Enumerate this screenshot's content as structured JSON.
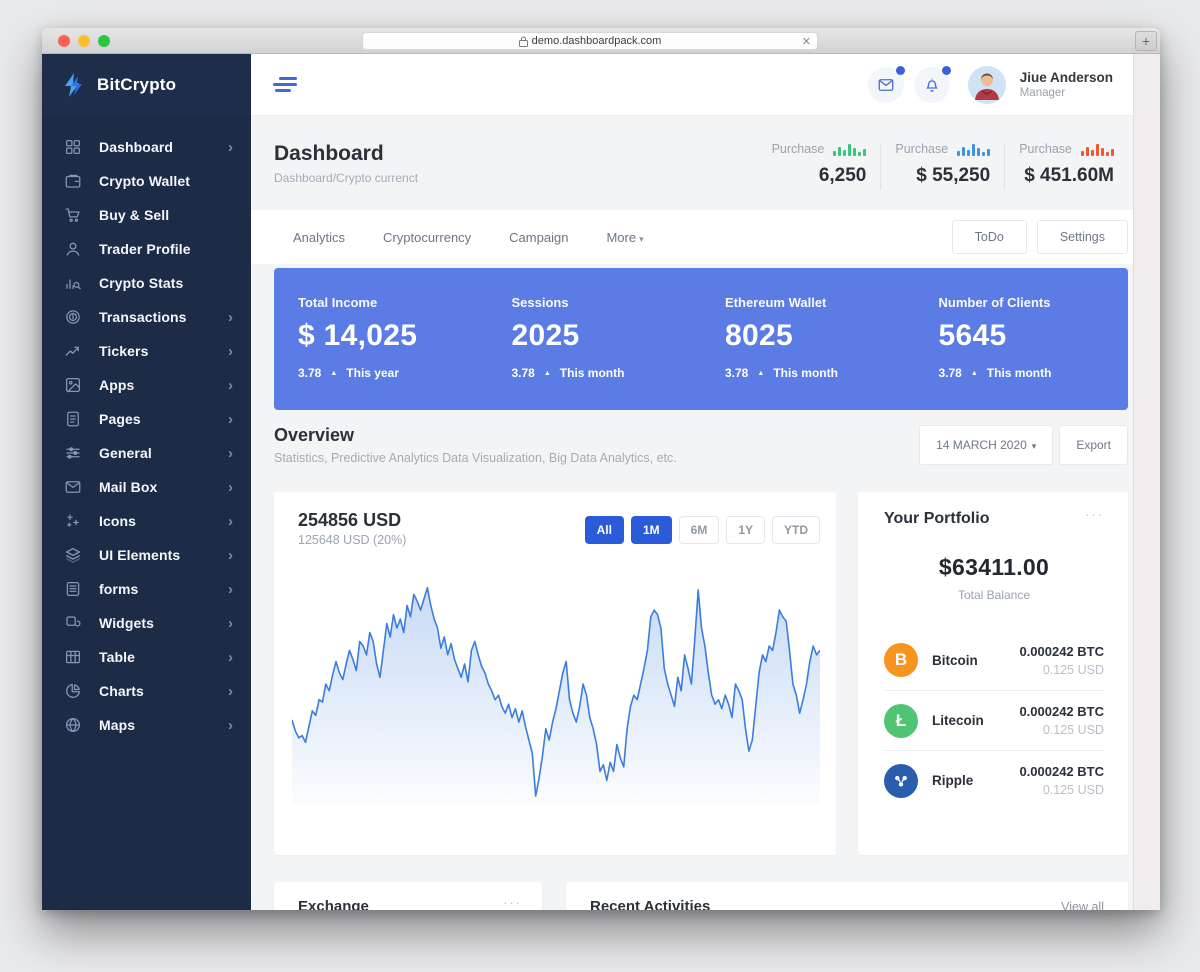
{
  "ui": {
    "ellipsis": "···",
    "chevron": "›",
    "caret": "▾",
    "triangle_up": "▲"
  },
  "browser": {
    "url": "demo.dashboardpack.com",
    "lock_icon": "lock-icon",
    "close_label": "✕",
    "new_tab_label": "+"
  },
  "sidebar": {
    "brand": "BitCrypto",
    "logo_icon": "lightning-icon",
    "items": [
      {
        "label": "Dashboard",
        "icon": "grid-icon",
        "has_submenu": true
      },
      {
        "label": "Crypto Wallet",
        "icon": "wallet-icon",
        "has_submenu": false
      },
      {
        "label": "Buy & Sell",
        "icon": "cart-icon",
        "has_submenu": false
      },
      {
        "label": "Trader Profile",
        "icon": "user-icon",
        "has_submenu": false
      },
      {
        "label": "Crypto Stats",
        "icon": "stats-search-icon",
        "has_submenu": false
      },
      {
        "label": "Transactions",
        "icon": "coin-icon",
        "has_submenu": true
      },
      {
        "label": "Tickers",
        "icon": "trend-icon",
        "has_submenu": true
      },
      {
        "label": "Apps",
        "icon": "image-icon",
        "has_submenu": true
      },
      {
        "label": "Pages",
        "icon": "page-icon",
        "has_submenu": true
      },
      {
        "label": "General",
        "icon": "sliders-icon",
        "has_submenu": true
      },
      {
        "label": "Mail Box",
        "icon": "mail-icon",
        "has_submenu": true
      },
      {
        "label": "Icons",
        "icon": "sparkles-icon",
        "has_submenu": true
      },
      {
        "label": "UI Elements",
        "icon": "layers-icon",
        "has_submenu": true
      },
      {
        "label": "forms",
        "icon": "form-icon",
        "has_submenu": true
      },
      {
        "label": "Widgets",
        "icon": "widget-icon",
        "has_submenu": true
      },
      {
        "label": "Table",
        "icon": "table-icon",
        "has_submenu": true
      },
      {
        "label": "Charts",
        "icon": "pie-icon",
        "has_submenu": true
      },
      {
        "label": "Maps",
        "icon": "globe-icon",
        "has_submenu": true
      }
    ]
  },
  "topbar": {
    "user_name": "Jiue Anderson",
    "user_role": "Manager",
    "mail_icon": "mail-icon",
    "bell_icon": "bell-icon",
    "accent": "#3f6ad8"
  },
  "page_header": {
    "title": "Dashboard",
    "breadcrumb": "Dashboard/Crypto currenct",
    "purchases": [
      {
        "label": "Purchase",
        "value": "6,250",
        "color": "#3ac47d",
        "bars": [
          5,
          9,
          6,
          12,
          8,
          4,
          7
        ]
      },
      {
        "label": "Purchase",
        "value": "$ 55,250",
        "color": "#4191e2",
        "bars": [
          5,
          9,
          6,
          12,
          8,
          4,
          7
        ]
      },
      {
        "label": "Purchase",
        "value": "$ 451.60M",
        "color": "#f4572e",
        "bars": [
          5,
          9,
          6,
          12,
          8,
          4,
          7
        ]
      }
    ]
  },
  "tabs": {
    "items": [
      "Analytics",
      "Cryptocurrency",
      "Campaign"
    ],
    "more_label": "More",
    "buttons": [
      "ToDo",
      "Settings"
    ]
  },
  "stats_band": {
    "bg": "#5b7ce4",
    "items": [
      {
        "label": "Total Income",
        "value": "$ 14,025",
        "change": "3.78",
        "period": "This year"
      },
      {
        "label": "Sessions",
        "value": "2025",
        "change": "3.78",
        "period": "This month"
      },
      {
        "label": "Ethereum Wallet",
        "value": "8025",
        "change": "3.78",
        "period": "This month"
      },
      {
        "label": "Number of Clients",
        "value": "5645",
        "change": "3.78",
        "period": "This month"
      }
    ]
  },
  "overview": {
    "title": "Overview",
    "subtitle": "Statistics, Predictive Analytics Data Visualization, Big Data Analytics, etc.",
    "date_button": "14 MARCH 2020",
    "export_button": "Export"
  },
  "chart_card": {
    "value": "254856 USD",
    "subvalue": "125648 USD (20%)",
    "ranges": [
      {
        "label": "All",
        "active": true
      },
      {
        "label": "1M",
        "active": true
      },
      {
        "label": "6M",
        "active": false
      },
      {
        "label": "1Y",
        "active": false
      },
      {
        "label": "YTD",
        "active": false
      }
    ],
    "active_color": "#2b5bd8"
  },
  "chart_data": {
    "type": "area",
    "title": "Overview price chart (254856 USD)",
    "line_color": "#3b7ddd",
    "fill_color": "#3b7ddd",
    "xlabel": "",
    "ylabel": "",
    "axes_hidden": true,
    "ylim": [
      0,
      100
    ],
    "values": [
      38,
      33,
      30,
      31,
      28,
      35,
      42,
      40,
      47,
      46,
      54,
      51,
      58,
      64,
      59,
      56,
      63,
      69,
      65,
      60,
      73,
      71,
      67,
      77,
      73,
      63,
      57,
      69,
      81,
      75,
      85,
      79,
      83,
      77,
      89,
      84,
      94,
      91,
      87,
      92,
      97,
      89,
      83,
      79,
      70,
      75,
      67,
      72,
      65,
      61,
      57,
      63,
      55,
      69,
      73,
      67,
      62,
      59,
      54,
      51,
      47,
      49,
      44,
      41,
      45,
      39,
      43,
      37,
      42,
      35,
      29,
      23,
      4,
      12,
      22,
      34,
      29,
      37,
      43,
      51,
      59,
      64,
      47,
      41,
      37,
      44,
      54,
      49,
      39,
      34,
      27,
      15,
      18,
      11,
      19,
      15,
      27,
      21,
      17,
      34,
      44,
      49,
      47,
      54,
      61,
      69,
      84,
      87,
      85,
      79,
      61,
      54,
      49,
      44,
      57,
      51,
      67,
      61,
      54,
      74,
      96,
      79,
      71,
      59,
      49,
      45,
      47,
      43,
      49,
      45,
      39,
      54,
      51,
      47,
      34,
      24,
      29,
      44,
      59,
      67,
      64,
      71,
      69,
      77,
      87,
      84,
      82,
      69,
      54,
      49,
      41,
      47,
      54,
      64,
      71,
      67,
      69
    ]
  },
  "portfolio": {
    "title": "Your Portfolio",
    "balance": "$63411.00",
    "balance_label": "Total Balance",
    "assets": [
      {
        "name": "Bitcoin",
        "icon": "bitcoin-icon",
        "color": "#f7931e",
        "symbol": "B",
        "amount": "0.000242 BTC",
        "usd": "0.125 USD"
      },
      {
        "name": "Litecoin",
        "icon": "litecoin-icon",
        "color": "#4fc472",
        "symbol": "Ł",
        "amount": "0.000242 BTC",
        "usd": "0.125 USD"
      },
      {
        "name": "Ripple",
        "icon": "ripple-icon",
        "color": "#2b5dae",
        "symbol": "",
        "amount": "0.000242 BTC",
        "usd": "0.125 USD"
      }
    ]
  },
  "bottom": {
    "exchange_title": "Exchange",
    "recent_title": "Recent Activities",
    "view_all": "View all"
  }
}
